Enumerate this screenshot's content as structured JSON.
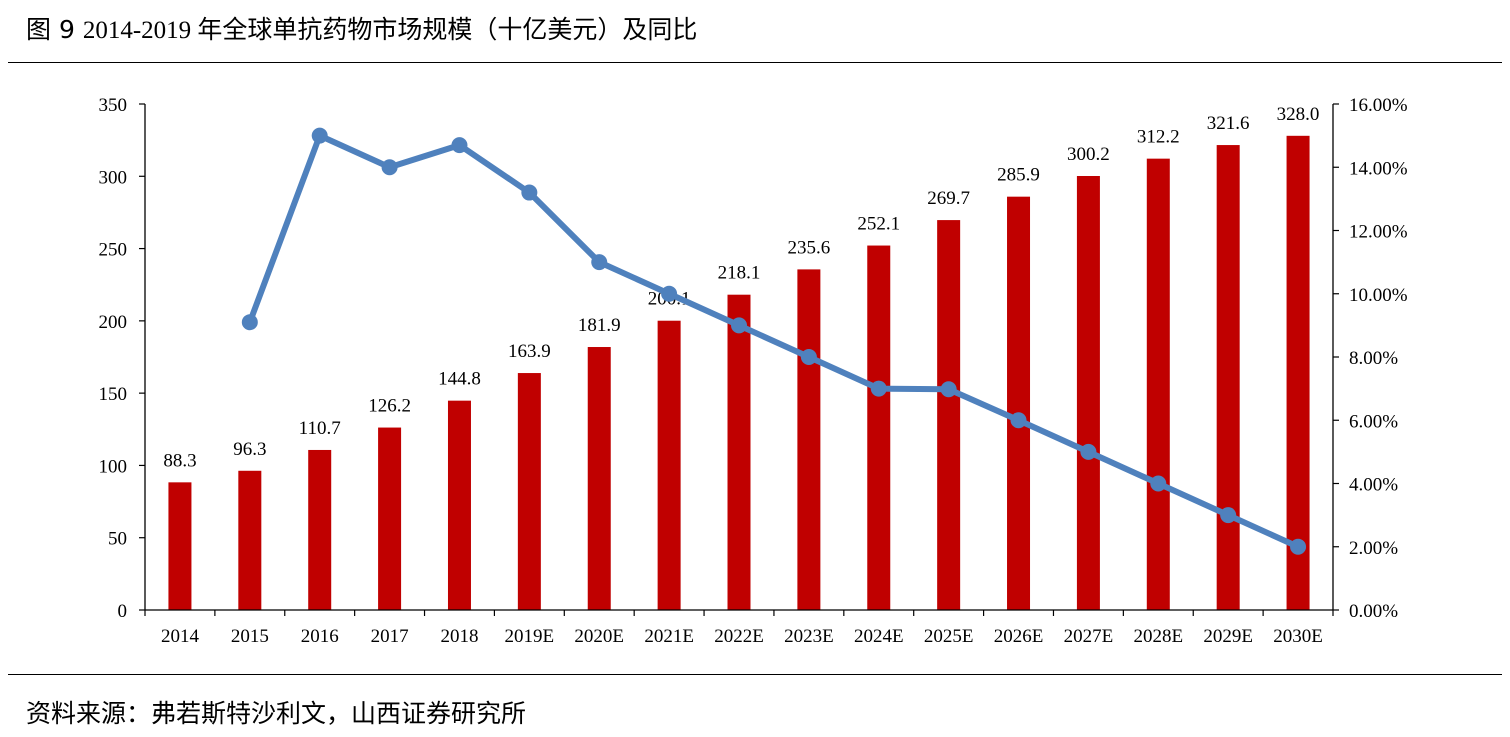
{
  "figure": {
    "number": "图 9",
    "title": "2014-2019 年全球单抗药物市场规模（十亿美元）及同比",
    "source": "资料来源：弗若斯特沙利文，山西证券研究所"
  },
  "colors": {
    "bar": "#C00000",
    "line": "#4F81BD",
    "axis": "#000000",
    "rule": "#000000"
  },
  "chart_data": {
    "type": "bar",
    "title": "2014-2019 年全球单抗药物市场规模（十亿美元）及同比",
    "categories": [
      "2014",
      "2015",
      "2016",
      "2017",
      "2018",
      "2019E",
      "2020E",
      "2021E",
      "2022E",
      "2023E",
      "2024E",
      "2025E",
      "2026E",
      "2027E",
      "2028E",
      "2029E",
      "2030E"
    ],
    "series": [
      {
        "type": "bar",
        "axis": "left",
        "values": [
          88.3,
          96.3,
          110.7,
          126.2,
          144.8,
          163.9,
          181.9,
          200.1,
          218.1,
          235.6,
          252.1,
          269.7,
          285.9,
          300.2,
          312.2,
          321.6,
          328.0
        ],
        "data_labels": [
          "88.3",
          "96.3",
          "110.7",
          "126.2",
          "144.8",
          "163.9",
          "181.9",
          "200.1",
          "218.1",
          "235.6",
          "252.1",
          "269.7",
          "285.9",
          "300.2",
          "312.2",
          "321.6",
          "328.0"
        ]
      },
      {
        "type": "line",
        "axis": "right",
        "unit": "%",
        "values": [
          null,
          9.1,
          15.0,
          14.0,
          14.7,
          13.2,
          11.0,
          10.0,
          9.0,
          8.0,
          7.0,
          6.98,
          6.0,
          5.0,
          4.0,
          3.0,
          2.0
        ]
      }
    ],
    "y_left": {
      "min": 0,
      "max": 350,
      "ticks": [
        "0",
        "50",
        "100",
        "150",
        "200",
        "250",
        "300",
        "350"
      ]
    },
    "y_right": {
      "min": 0,
      "max": 16,
      "ticks": [
        "0.00%",
        "2.00%",
        "4.00%",
        "6.00%",
        "8.00%",
        "10.00%",
        "12.00%",
        "14.00%",
        "16.00%"
      ]
    },
    "xlabel": "",
    "ylabel": "",
    "grid": false,
    "legend": "none"
  }
}
